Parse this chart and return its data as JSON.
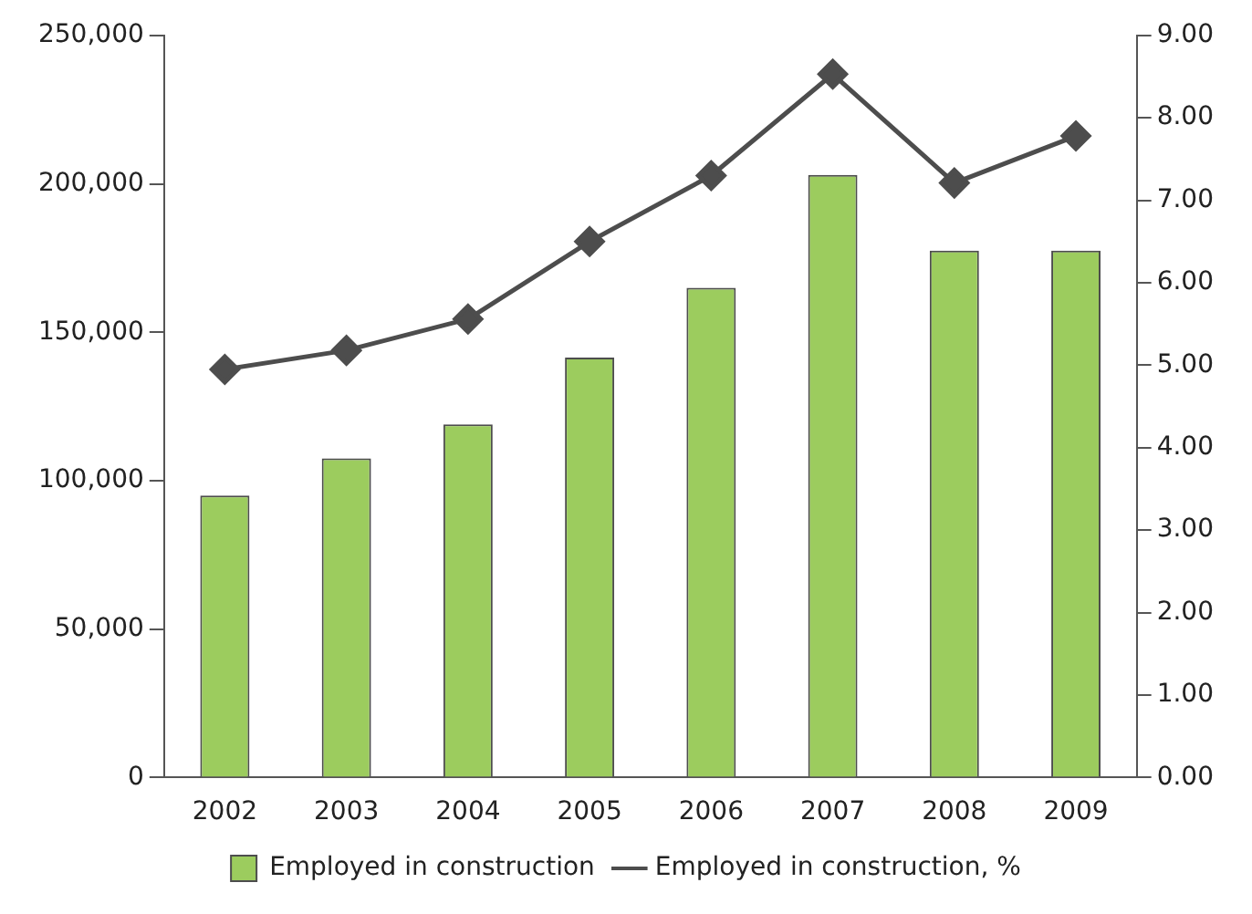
{
  "chart_data": {
    "type": "bar",
    "categories": [
      "2002",
      "2003",
      "2004",
      "2005",
      "2006",
      "2007",
      "2008",
      "2009"
    ],
    "series": [
      {
        "name": "Employed in construction",
        "color": "#9ccc5e",
        "values": [
          95000,
          107500,
          119000,
          141500,
          165000,
          203000,
          177500,
          177500
        ]
      },
      {
        "name": "Employed in construction, %",
        "type": "line",
        "axis": "y2",
        "color": "#4d4d4d",
        "values": [
          4.95,
          5.18,
          5.56,
          6.5,
          7.3,
          8.53,
          7.21,
          7.78
        ]
      }
    ],
    "ylim": [
      0,
      250000
    ],
    "yticks": [
      {
        "value": 0,
        "label": "0"
      },
      {
        "value": 50000,
        "label": "50,000"
      },
      {
        "value": 100000,
        "label": "100,000"
      },
      {
        "value": 150000,
        "label": "150,000"
      },
      {
        "value": 200000,
        "label": "200,000"
      },
      {
        "value": 250000,
        "label": "250,000"
      }
    ],
    "y2lim": [
      0,
      9
    ],
    "y2ticks": [
      {
        "value": 0,
        "label": "0.00"
      },
      {
        "value": 1,
        "label": "1.00"
      },
      {
        "value": 2,
        "label": "2.00"
      },
      {
        "value": 3,
        "label": "3.00"
      },
      {
        "value": 4,
        "label": "4.00"
      },
      {
        "value": 5,
        "label": "5.00"
      },
      {
        "value": 6,
        "label": "6.00"
      },
      {
        "value": 7,
        "label": "7.00"
      },
      {
        "value": 8,
        "label": "8.00"
      },
      {
        "value": 9,
        "label": "9.00"
      }
    ],
    "marker": "diamond",
    "legend": "bottom",
    "grid": false
  }
}
